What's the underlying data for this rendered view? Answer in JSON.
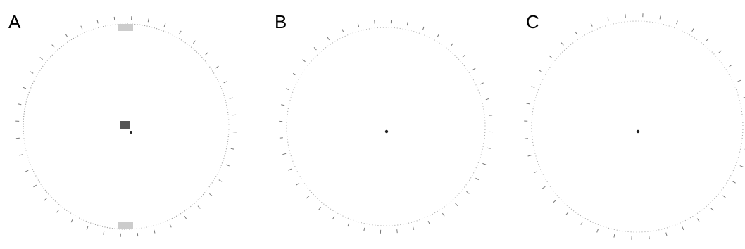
{
  "panels": [
    {
      "label": "A"
    },
    {
      "label": "B"
    },
    {
      "label": "C"
    }
  ]
}
